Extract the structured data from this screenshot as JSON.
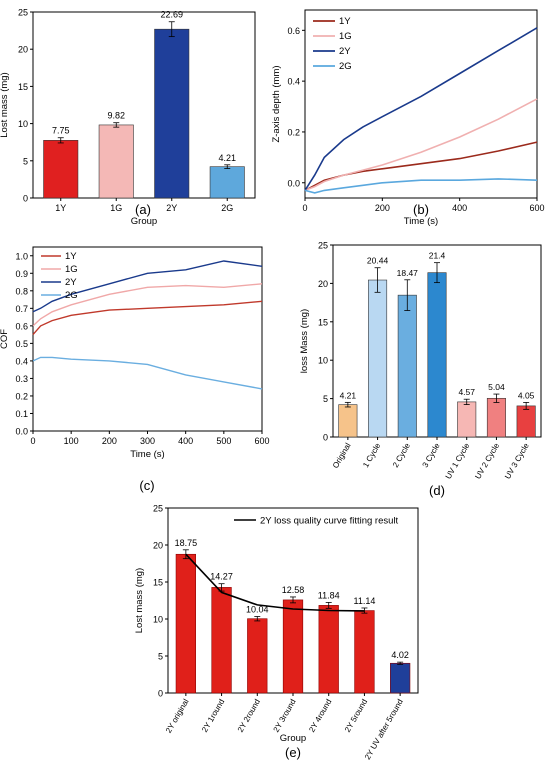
{
  "chart_data": [
    {
      "panel": "(a)",
      "type": "bar",
      "xlabel": "Group",
      "ylabel": "Lost mass (mg)",
      "ylim": [
        0,
        25
      ],
      "yticks": [
        0,
        5,
        10,
        15,
        20,
        25
      ],
      "categories": [
        "1Y",
        "1G",
        "2Y",
        "2G"
      ],
      "values": [
        7.75,
        9.82,
        22.69,
        4.21
      ],
      "value_labels": [
        "7.75",
        "9.82",
        "22.69",
        "4.21"
      ],
      "errors": [
        0.35,
        0.3,
        1.0,
        0.25
      ],
      "colors": [
        "#e02020",
        "#f4b8b6",
        "#1f3f9a",
        "#5ea8dc"
      ]
    },
    {
      "panel": "(b)",
      "type": "line",
      "xlabel": "Time (s)",
      "ylabel": "Z-axis depth (mm)",
      "xlim": [
        0,
        600
      ],
      "ylim": [
        -0.06,
        0.68
      ],
      "xticks": [
        0,
        200,
        400,
        600
      ],
      "yticks": [
        0.0,
        0.2,
        0.4,
        0.6
      ],
      "ytick_labels": [
        "0.0",
        "0.2",
        "0.4",
        "0.6"
      ],
      "legend_position": "top-left",
      "series": [
        {
          "name": "1Y",
          "color": "#9b2a1c",
          "x": [
            0,
            25,
            50,
            100,
            150,
            200,
            300,
            400,
            500,
            600
          ],
          "y": [
            -0.03,
            -0.01,
            0.01,
            0.03,
            0.045,
            0.055,
            0.075,
            0.095,
            0.125,
            0.16
          ]
        },
        {
          "name": "1G",
          "color": "#f0b0b0",
          "x": [
            0,
            25,
            50,
            100,
            150,
            200,
            300,
            400,
            500,
            600
          ],
          "y": [
            -0.03,
            -0.015,
            0.005,
            0.03,
            0.05,
            0.07,
            0.12,
            0.18,
            0.25,
            0.33
          ]
        },
        {
          "name": "2Y",
          "color": "#1a3a8c",
          "x": [
            0,
            25,
            50,
            100,
            150,
            200,
            300,
            400,
            500,
            600
          ],
          "y": [
            -0.03,
            0.03,
            0.1,
            0.17,
            0.22,
            0.26,
            0.34,
            0.43,
            0.52,
            0.61
          ]
        },
        {
          "name": "2G",
          "color": "#5aa8de",
          "x": [
            0,
            25,
            50,
            100,
            150,
            200,
            300,
            400,
            500,
            600
          ],
          "y": [
            -0.03,
            -0.04,
            -0.03,
            -0.02,
            -0.01,
            0.0,
            0.01,
            0.01,
            0.015,
            0.01
          ]
        }
      ]
    },
    {
      "panel": "(c)",
      "type": "line",
      "xlabel": "Time (s)",
      "ylabel": "COF",
      "xlim": [
        0,
        600
      ],
      "ylim": [
        0.0,
        1.05
      ],
      "xticks": [
        0,
        100,
        200,
        300,
        400,
        500,
        600
      ],
      "yticks": [
        0.0,
        0.1,
        0.2,
        0.3,
        0.4,
        0.5,
        0.6,
        0.7,
        0.8,
        0.9,
        1.0
      ],
      "ytick_labels": [
        "0.0",
        "0.1",
        "0.2",
        "0.3",
        "0.4",
        "0.5",
        "0.6",
        "0.7",
        "0.8",
        "0.9",
        "1.0"
      ],
      "legend_position": "top-left",
      "series": [
        {
          "name": "1Y",
          "color": "#c0392b",
          "x": [
            0,
            20,
            50,
            100,
            200,
            300,
            400,
            500,
            600
          ],
          "y": [
            0.55,
            0.6,
            0.63,
            0.66,
            0.69,
            0.7,
            0.71,
            0.72,
            0.74
          ]
        },
        {
          "name": "1G",
          "color": "#f0a8a8",
          "x": [
            0,
            20,
            50,
            100,
            200,
            300,
            400,
            500,
            600
          ],
          "y": [
            0.6,
            0.64,
            0.68,
            0.72,
            0.78,
            0.82,
            0.83,
            0.82,
            0.84
          ]
        },
        {
          "name": "2Y",
          "color": "#1a3a8c",
          "x": [
            0,
            20,
            50,
            100,
            200,
            300,
            400,
            500,
            600
          ],
          "y": [
            0.68,
            0.7,
            0.74,
            0.78,
            0.84,
            0.9,
            0.92,
            0.97,
            0.94
          ]
        },
        {
          "name": "2G",
          "color": "#6aaee0",
          "x": [
            0,
            20,
            50,
            100,
            200,
            300,
            400,
            500,
            600
          ],
          "y": [
            0.4,
            0.42,
            0.42,
            0.41,
            0.4,
            0.38,
            0.32,
            0.28,
            0.24
          ]
        }
      ]
    },
    {
      "panel": "(d)",
      "type": "bar",
      "xlabel": "",
      "ylabel": "loss Mass (mg)",
      "ylim": [
        0,
        25
      ],
      "yticks": [
        0,
        5,
        10,
        15,
        20,
        25
      ],
      "categories": [
        "Original",
        "1 Cycle",
        "2 Cycle",
        "3 Cycle",
        "UV 1 Cycle",
        "UV 2 Cycle",
        "UV 3 Cycle"
      ],
      "values": [
        4.21,
        20.44,
        18.47,
        21.4,
        4.57,
        5.04,
        4.05
      ],
      "value_labels": [
        "4.21",
        "20.44",
        "18.47",
        "21.4",
        "4.57",
        "5.04",
        "4.05"
      ],
      "errors": [
        0.3,
        1.6,
        2.0,
        1.3,
        0.35,
        0.55,
        0.45
      ],
      "colors": [
        "#f6c38a",
        "#b9d8f2",
        "#6aaee0",
        "#2c88cf",
        "#f6b7b4",
        "#f08080",
        "#e84040"
      ]
    },
    {
      "panel": "(e)",
      "type": "bar",
      "xlabel": "Group",
      "ylabel": "Lost mass (mg)",
      "ylim": [
        0,
        25
      ],
      "yticks": [
        0,
        5,
        10,
        15,
        20,
        25
      ],
      "categories": [
        "2Y original",
        "2Y 1round",
        "2Y 2round",
        "2Y 3round",
        "2Y 4round",
        "2Y 5round",
        "2Y UV after 5round"
      ],
      "values": [
        18.75,
        14.27,
        10.04,
        12.58,
        11.84,
        11.14,
        4.02
      ],
      "value_labels": [
        "18.75",
        "14.27",
        "10.04",
        "12.58",
        "11.84",
        "11.14",
        "4.02"
      ],
      "errors": [
        0.6,
        0.5,
        0.3,
        0.4,
        0.4,
        0.35,
        0.15
      ],
      "colors": [
        "#e0201a",
        "#e0201a",
        "#e0201a",
        "#e0201a",
        "#e0201a",
        "#e0201a",
        "#1f3f9a"
      ],
      "legend": "2Y loss quality curve fitting result",
      "legend_position": "top-right",
      "fit_curve": {
        "x": [
          0,
          1,
          2,
          3,
          4,
          5
        ],
        "y": [
          18.75,
          13.6,
          11.9,
          11.35,
          11.15,
          11.1
        ]
      }
    }
  ],
  "captions": [
    "(a)",
    "(b)",
    "(c)",
    "(d)",
    "(e)"
  ]
}
